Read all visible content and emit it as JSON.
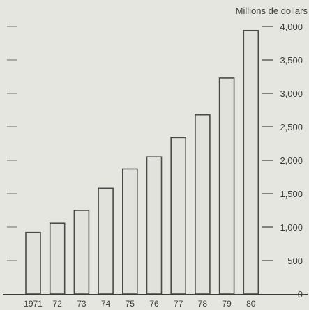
{
  "chart_data": {
    "type": "bar",
    "title": "",
    "xlabel": "",
    "ylabel": "Millions de dollars",
    "categories": [
      "1971",
      "72",
      "73",
      "74",
      "75",
      "76",
      "77",
      "78",
      "79",
      "80"
    ],
    "values": [
      920,
      1060,
      1250,
      1580,
      1870,
      2050,
      2340,
      2680,
      3230,
      3940
    ],
    "ylim": [
      0,
      4000
    ],
    "yticks": [
      0,
      500,
      1000,
      1500,
      2000,
      2500,
      3000,
      3500,
      4000
    ],
    "ytick_labels": [
      "0",
      "500",
      "1,000",
      "1,500",
      "2,000",
      "2,500",
      "3,000",
      "3,500",
      "4,000"
    ],
    "grid": false,
    "colors": {
      "background": "#e6e6e0",
      "bar_fill": "#e2e2dc",
      "bar_stroke": "#4a4a4a",
      "axis": "#3c3c3c",
      "text": "#3c3c3c"
    }
  }
}
